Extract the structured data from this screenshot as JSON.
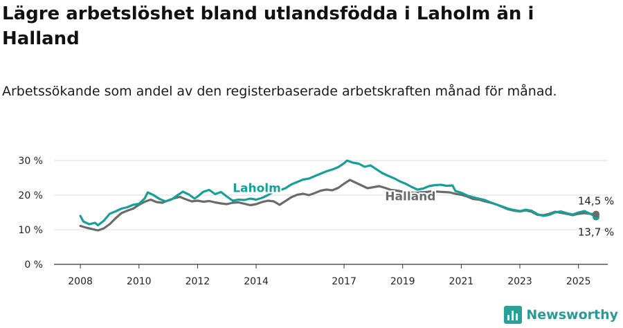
{
  "title": "Lägre arbetslöshet bland utlandsfödda i Laholm än i Halland",
  "subtitle": "Arbetssökande som andel av den registerbaserade arbetskraften månad för månad.",
  "brand": {
    "name": "Newsworthy",
    "icon": "newsworthy-logo-icon",
    "color": "#2aa198"
  },
  "chart_data": {
    "type": "line",
    "title": "Lägre arbetslöshet bland utlandsfödda i Laholm än i Halland",
    "xlabel": "",
    "ylabel": "",
    "ylim": [
      0,
      30
    ],
    "xlim": [
      2007.1,
      2026.0
    ],
    "grid": true,
    "yticks": [
      {
        "value": 0,
        "label": "0 %"
      },
      {
        "value": 10,
        "label": "10 %"
      },
      {
        "value": 20,
        "label": "20 %"
      },
      {
        "value": 30,
        "label": "30 %"
      }
    ],
    "xticks": [
      {
        "value": 2008,
        "label": "2008"
      },
      {
        "value": 2010,
        "label": "2010"
      },
      {
        "value": 2012,
        "label": "2012"
      },
      {
        "value": 2014,
        "label": "2014"
      },
      {
        "value": 2017,
        "label": "2017"
      },
      {
        "value": 2019,
        "label": "2019"
      },
      {
        "value": 2021,
        "label": "2021"
      },
      {
        "value": 2023,
        "label": "2023"
      },
      {
        "value": 2025,
        "label": "2025"
      }
    ],
    "series": [
      {
        "name": "Laholm",
        "color": "#17a097",
        "end_label": "13,7 %",
        "points": [
          [
            2008.0,
            14.0
          ],
          [
            2008.1,
            12.4
          ],
          [
            2008.3,
            11.6
          ],
          [
            2008.5,
            12.0
          ],
          [
            2008.6,
            11.3
          ],
          [
            2008.8,
            12.6
          ],
          [
            2009.0,
            14.6
          ],
          [
            2009.2,
            15.3
          ],
          [
            2009.4,
            16.1
          ],
          [
            2009.6,
            16.5
          ],
          [
            2009.8,
            17.2
          ],
          [
            2010.0,
            17.5
          ],
          [
            2010.2,
            19.1
          ],
          [
            2010.3,
            20.8
          ],
          [
            2010.5,
            20.0
          ],
          [
            2010.7,
            18.9
          ],
          [
            2010.9,
            18.2
          ],
          [
            2011.1,
            18.7
          ],
          [
            2011.3,
            19.9
          ],
          [
            2011.5,
            21.0
          ],
          [
            2011.7,
            20.2
          ],
          [
            2011.9,
            19.0
          ],
          [
            2012.0,
            19.6
          ],
          [
            2012.2,
            21.0
          ],
          [
            2012.4,
            21.5
          ],
          [
            2012.6,
            20.3
          ],
          [
            2012.8,
            20.9
          ],
          [
            2013.0,
            19.6
          ],
          [
            2013.2,
            18.4
          ],
          [
            2013.4,
            18.7
          ],
          [
            2013.6,
            18.6
          ],
          [
            2013.8,
            19.0
          ],
          [
            2014.0,
            18.7
          ],
          [
            2014.2,
            19.2
          ],
          [
            2014.4,
            20.0
          ],
          [
            2014.6,
            21.0
          ],
          [
            2014.8,
            21.4
          ],
          [
            2015.0,
            22.0
          ],
          [
            2015.2,
            23.1
          ],
          [
            2015.4,
            23.8
          ],
          [
            2015.6,
            24.5
          ],
          [
            2015.8,
            24.8
          ],
          [
            2016.0,
            25.5
          ],
          [
            2016.2,
            26.2
          ],
          [
            2016.4,
            26.9
          ],
          [
            2016.6,
            27.4
          ],
          [
            2016.8,
            28.1
          ],
          [
            2017.0,
            29.2
          ],
          [
            2017.1,
            30.0
          ],
          [
            2017.3,
            29.4
          ],
          [
            2017.5,
            29.1
          ],
          [
            2017.7,
            28.2
          ],
          [
            2017.9,
            28.6
          ],
          [
            2018.1,
            27.5
          ],
          [
            2018.3,
            26.4
          ],
          [
            2018.5,
            25.6
          ],
          [
            2018.7,
            24.9
          ],
          [
            2018.9,
            24.0
          ],
          [
            2019.1,
            23.3
          ],
          [
            2019.3,
            22.4
          ],
          [
            2019.5,
            21.6
          ],
          [
            2019.7,
            21.9
          ],
          [
            2019.9,
            22.6
          ],
          [
            2020.1,
            22.9
          ],
          [
            2020.3,
            23.0
          ],
          [
            2020.5,
            22.7
          ],
          [
            2020.7,
            22.8
          ],
          [
            2020.8,
            21.2
          ],
          [
            2021.0,
            20.7
          ],
          [
            2021.2,
            19.9
          ],
          [
            2021.4,
            19.4
          ],
          [
            2021.6,
            19.0
          ],
          [
            2021.8,
            18.6
          ],
          [
            2022.0,
            17.9
          ],
          [
            2022.2,
            17.3
          ],
          [
            2022.4,
            16.7
          ],
          [
            2022.6,
            16.1
          ],
          [
            2022.8,
            15.7
          ],
          [
            2023.0,
            15.4
          ],
          [
            2023.2,
            15.8
          ],
          [
            2023.4,
            15.5
          ],
          [
            2023.6,
            14.5
          ],
          [
            2023.8,
            14.0
          ],
          [
            2024.0,
            14.3
          ],
          [
            2024.2,
            15.0
          ],
          [
            2024.4,
            15.3
          ],
          [
            2024.6,
            14.8
          ],
          [
            2024.8,
            14.4
          ],
          [
            2025.0,
            15.0
          ],
          [
            2025.2,
            15.4
          ],
          [
            2025.4,
            14.6
          ],
          [
            2025.6,
            13.7
          ]
        ]
      },
      {
        "name": "Halland",
        "color": "#6b6b6b",
        "end_label": "14,5 %",
        "points": [
          [
            2008.0,
            11.1
          ],
          [
            2008.2,
            10.6
          ],
          [
            2008.4,
            10.2
          ],
          [
            2008.6,
            9.8
          ],
          [
            2008.8,
            10.4
          ],
          [
            2009.0,
            11.6
          ],
          [
            2009.2,
            13.3
          ],
          [
            2009.4,
            14.8
          ],
          [
            2009.6,
            15.5
          ],
          [
            2009.8,
            16.1
          ],
          [
            2010.0,
            17.2
          ],
          [
            2010.2,
            18.1
          ],
          [
            2010.4,
            18.7
          ],
          [
            2010.6,
            18.0
          ],
          [
            2010.8,
            17.8
          ],
          [
            2011.0,
            18.5
          ],
          [
            2011.2,
            19.1
          ],
          [
            2011.4,
            19.5
          ],
          [
            2011.6,
            18.8
          ],
          [
            2011.8,
            18.2
          ],
          [
            2012.0,
            18.4
          ],
          [
            2012.2,
            18.1
          ],
          [
            2012.4,
            18.3
          ],
          [
            2012.6,
            17.9
          ],
          [
            2012.8,
            17.6
          ],
          [
            2013.0,
            17.4
          ],
          [
            2013.2,
            17.8
          ],
          [
            2013.4,
            17.9
          ],
          [
            2013.6,
            17.5
          ],
          [
            2013.8,
            17.1
          ],
          [
            2014.0,
            17.4
          ],
          [
            2014.2,
            18.0
          ],
          [
            2014.4,
            18.4
          ],
          [
            2014.6,
            18.2
          ],
          [
            2014.8,
            17.2
          ],
          [
            2015.0,
            18.3
          ],
          [
            2015.2,
            19.4
          ],
          [
            2015.4,
            20.1
          ],
          [
            2015.6,
            20.4
          ],
          [
            2015.8,
            20.0
          ],
          [
            2016.0,
            20.6
          ],
          [
            2016.2,
            21.3
          ],
          [
            2016.4,
            21.6
          ],
          [
            2016.6,
            21.4
          ],
          [
            2016.8,
            22.1
          ],
          [
            2017.0,
            23.3
          ],
          [
            2017.2,
            24.4
          ],
          [
            2017.4,
            23.6
          ],
          [
            2017.6,
            22.8
          ],
          [
            2017.8,
            22.0
          ],
          [
            2018.0,
            22.3
          ],
          [
            2018.2,
            22.6
          ],
          [
            2018.4,
            22.1
          ],
          [
            2018.6,
            21.5
          ],
          [
            2018.8,
            21.3
          ],
          [
            2019.0,
            21.0
          ],
          [
            2019.2,
            20.9
          ],
          [
            2019.4,
            20.6
          ],
          [
            2019.6,
            20.8
          ],
          [
            2019.8,
            20.9
          ],
          [
            2020.0,
            21.1
          ],
          [
            2020.2,
            21.0
          ],
          [
            2020.4,
            20.9
          ],
          [
            2020.6,
            20.8
          ],
          [
            2020.8,
            20.4
          ],
          [
            2021.0,
            20.1
          ],
          [
            2021.2,
            19.6
          ],
          [
            2021.4,
            18.9
          ],
          [
            2021.6,
            18.7
          ],
          [
            2021.8,
            18.2
          ],
          [
            2022.0,
            17.8
          ],
          [
            2022.2,
            17.3
          ],
          [
            2022.4,
            16.6
          ],
          [
            2022.6,
            15.9
          ],
          [
            2022.8,
            15.5
          ],
          [
            2023.0,
            15.3
          ],
          [
            2023.2,
            15.6
          ],
          [
            2023.4,
            15.2
          ],
          [
            2023.6,
            14.3
          ],
          [
            2023.8,
            14.2
          ],
          [
            2024.0,
            14.6
          ],
          [
            2024.2,
            15.2
          ],
          [
            2024.4,
            14.9
          ],
          [
            2024.6,
            14.6
          ],
          [
            2024.8,
            14.2
          ],
          [
            2025.0,
            14.6
          ],
          [
            2025.2,
            14.8
          ],
          [
            2025.4,
            14.6
          ],
          [
            2025.6,
            14.5
          ]
        ]
      }
    ]
  }
}
